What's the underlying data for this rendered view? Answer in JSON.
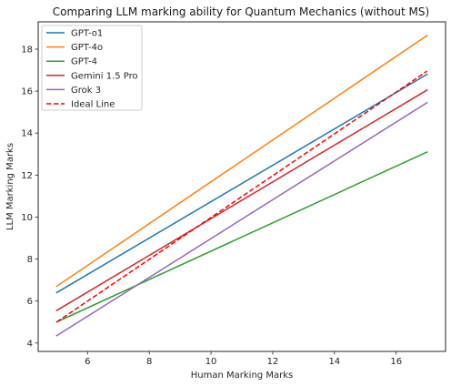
{
  "chart_data": {
    "type": "line",
    "title": "Comparing LLM marking ability for Quantum Mechanics (without MS)",
    "xlabel": "Human Marking Marks",
    "ylabel": "LLM Marking Marks",
    "xlim": [
      4.4,
      17.6
    ],
    "ylim": [
      3.6,
      19.3
    ],
    "xticks": [
      6,
      8,
      10,
      12,
      14,
      16
    ],
    "yticks": [
      4,
      6,
      8,
      10,
      12,
      14,
      16,
      18
    ],
    "grid": false,
    "legend_position": "top-left",
    "series": [
      {
        "name": "GPT-o1",
        "color": "#1f77b4",
        "dash": "solid",
        "x": [
          5,
          17
        ],
        "y": [
          6.4,
          16.8
        ]
      },
      {
        "name": "GPT-4o",
        "color": "#ff7f0e",
        "dash": "solid",
        "x": [
          5,
          17
        ],
        "y": [
          6.7,
          18.65
        ]
      },
      {
        "name": "GPT-4",
        "color": "#2ca02c",
        "dash": "solid",
        "x": [
          5,
          17
        ],
        "y": [
          5.0,
          13.1
        ]
      },
      {
        "name": "Gemini 1.5 Pro",
        "color": "#d62728",
        "dash": "solid",
        "x": [
          5,
          17
        ],
        "y": [
          5.55,
          16.05
        ]
      },
      {
        "name": "Grok 3",
        "color": "#9467bd",
        "dash": "solid",
        "x": [
          5,
          17
        ],
        "y": [
          4.35,
          15.45
        ]
      },
      {
        "name": "Ideal Line",
        "color": "#ff0000",
        "dash": "dashed",
        "x": [
          5,
          17
        ],
        "y": [
          5.0,
          16.95
        ]
      }
    ]
  }
}
